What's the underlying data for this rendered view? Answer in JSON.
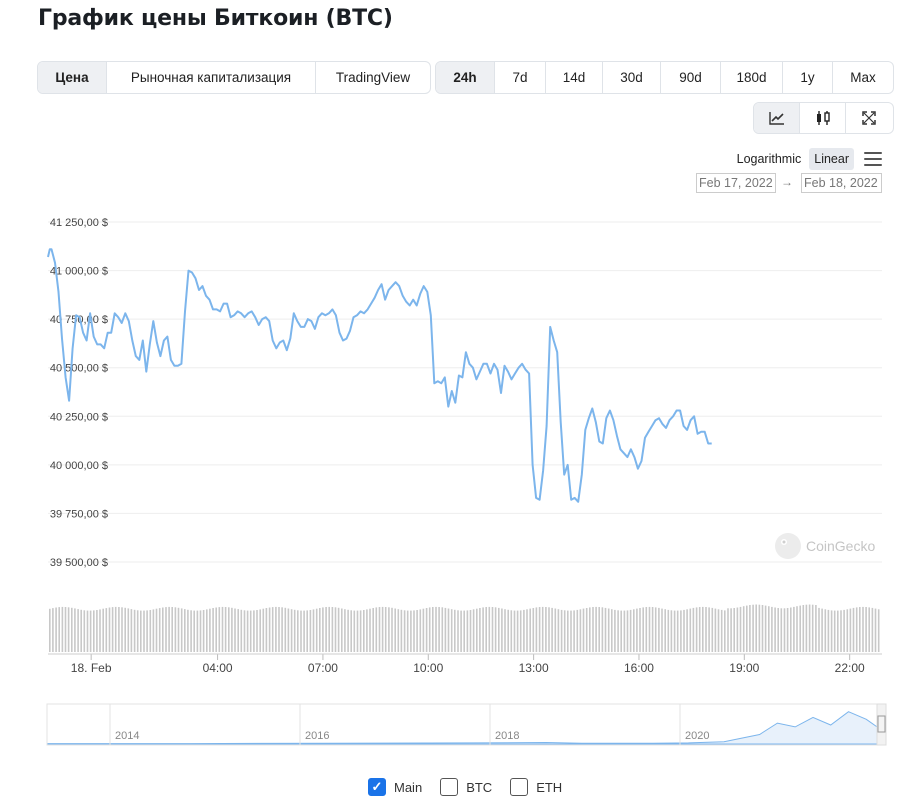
{
  "page_title": "График цены Биткоин (BTC)",
  "tabs": [
    {
      "label": "Цена",
      "active": true
    },
    {
      "label": "Рыночная капитализация",
      "active": false
    },
    {
      "label": "TradingView",
      "active": false
    }
  ],
  "ranges": [
    {
      "label": "24h",
      "active": true
    },
    {
      "label": "7d",
      "active": false
    },
    {
      "label": "14d",
      "active": false
    },
    {
      "label": "30d",
      "active": false
    },
    {
      "label": "90d",
      "active": false
    },
    {
      "label": "180d",
      "active": false
    },
    {
      "label": "1y",
      "active": false
    },
    {
      "label": "Max",
      "active": false
    }
  ],
  "view_buttons": [
    {
      "icon": "line-chart-icon",
      "active": true
    },
    {
      "icon": "candlestick-icon",
      "active": false
    },
    {
      "icon": "fullscreen-icon",
      "active": false
    }
  ],
  "scale": {
    "logarithmic": "Logarithmic",
    "linear": "Linear",
    "active": "Linear"
  },
  "date_range": {
    "from": "Feb 17, 2022",
    "arrow": "→",
    "to": "Feb 18, 2022"
  },
  "watermark": "CoinGecko",
  "legend": [
    {
      "label": "Main",
      "checked": true
    },
    {
      "label": "BTC",
      "checked": false
    },
    {
      "label": "ETH",
      "checked": false
    }
  ],
  "colors": {
    "line": "#7cb5ec",
    "grid": "#eeeeee",
    "volume": "#c8c8c8",
    "active_checkbox": "#1a73e8"
  },
  "chart_data": {
    "type": "line",
    "title": "",
    "ylabel": "",
    "ylim": [
      39500,
      41250
    ],
    "y_ticks": [
      41250,
      41000,
      40750,
      40500,
      40250,
      40000,
      39750,
      39500
    ],
    "y_tick_labels": [
      "41 250,00 $",
      "41 000,00 $",
      "40 750,00 $",
      "40 500,00 $",
      "40 250,00 $",
      "40 000,00 $",
      "39 750,00 $",
      "39 500,00 $"
    ],
    "x_tick_labels": [
      {
        "label": "18. Feb",
        "t": 1.4
      },
      {
        "label": "04:00",
        "t": 5
      },
      {
        "label": "07:00",
        "t": 8
      },
      {
        "label": "10:00",
        "t": 11
      },
      {
        "label": "13:00",
        "t": 14
      },
      {
        "label": "16:00",
        "t": 17
      },
      {
        "label": "19:00",
        "t": 20
      },
      {
        "label": "22:00",
        "t": 23
      }
    ],
    "grid": true,
    "series": [
      {
        "name": "",
        "points": [
          [
            0,
            41070
          ],
          [
            0.05,
            41110
          ],
          [
            0.1,
            41110
          ],
          [
            0.2,
            41040
          ],
          [
            0.3,
            40890
          ],
          [
            0.4,
            40650
          ],
          [
            0.5,
            40450
          ],
          [
            0.6,
            40330
          ],
          [
            0.7,
            40600
          ],
          [
            0.8,
            40770
          ],
          [
            0.9,
            40760
          ],
          [
            1.0,
            40680
          ],
          [
            1.1,
            40640
          ],
          [
            1.2,
            40780
          ],
          [
            1.3,
            40660
          ],
          [
            1.4,
            40620
          ],
          [
            1.5,
            40620
          ],
          [
            1.6,
            40600
          ],
          [
            1.7,
            40680
          ],
          [
            1.8,
            40680
          ],
          [
            1.9,
            40780
          ],
          [
            2.0,
            40760
          ],
          [
            2.1,
            40730
          ],
          [
            2.2,
            40780
          ],
          [
            2.3,
            40740
          ],
          [
            2.4,
            40640
          ],
          [
            2.5,
            40560
          ],
          [
            2.6,
            40540
          ],
          [
            2.7,
            40640
          ],
          [
            2.8,
            40480
          ],
          [
            2.9,
            40620
          ],
          [
            3.0,
            40740
          ],
          [
            3.1,
            40630
          ],
          [
            3.2,
            40560
          ],
          [
            3.3,
            40640
          ],
          [
            3.4,
            40660
          ],
          [
            3.5,
            40540
          ],
          [
            3.6,
            40510
          ],
          [
            3.7,
            40510
          ],
          [
            3.8,
            40520
          ],
          [
            3.9,
            40790
          ],
          [
            4.0,
            41000
          ],
          [
            4.1,
            40990
          ],
          [
            4.2,
            40960
          ],
          [
            4.3,
            40900
          ],
          [
            4.4,
            40920
          ],
          [
            4.5,
            40870
          ],
          [
            4.6,
            40850
          ],
          [
            4.7,
            40800
          ],
          [
            4.8,
            40800
          ],
          [
            4.9,
            40790
          ],
          [
            5.0,
            40830
          ],
          [
            5.1,
            40830
          ],
          [
            5.2,
            40760
          ],
          [
            5.3,
            40770
          ],
          [
            5.4,
            40790
          ],
          [
            5.5,
            40780
          ],
          [
            5.6,
            40760
          ],
          [
            5.7,
            40780
          ],
          [
            5.8,
            40790
          ],
          [
            5.9,
            40760
          ],
          [
            6.0,
            40720
          ],
          [
            6.1,
            40750
          ],
          [
            6.2,
            40760
          ],
          [
            6.3,
            40740
          ],
          [
            6.4,
            40640
          ],
          [
            6.5,
            40600
          ],
          [
            6.6,
            40630
          ],
          [
            6.7,
            40640
          ],
          [
            6.8,
            40590
          ],
          [
            6.9,
            40650
          ],
          [
            7.0,
            40780
          ],
          [
            7.1,
            40740
          ],
          [
            7.2,
            40710
          ],
          [
            7.3,
            40710
          ],
          [
            7.4,
            40750
          ],
          [
            7.5,
            40740
          ],
          [
            7.6,
            40700
          ],
          [
            7.7,
            40760
          ],
          [
            7.8,
            40780
          ],
          [
            7.9,
            40770
          ],
          [
            8.0,
            40780
          ],
          [
            8.1,
            40800
          ],
          [
            8.2,
            40770
          ],
          [
            8.3,
            40680
          ],
          [
            8.4,
            40640
          ],
          [
            8.5,
            40650
          ],
          [
            8.6,
            40690
          ],
          [
            8.7,
            40760
          ],
          [
            8.8,
            40770
          ],
          [
            8.9,
            40790
          ],
          [
            9.0,
            40780
          ],
          [
            9.1,
            40800
          ],
          [
            9.2,
            40830
          ],
          [
            9.3,
            40860
          ],
          [
            9.4,
            40900
          ],
          [
            9.5,
            40930
          ],
          [
            9.6,
            40850
          ],
          [
            9.7,
            40900
          ],
          [
            9.8,
            40920
          ],
          [
            9.9,
            40940
          ],
          [
            10.0,
            40920
          ],
          [
            10.1,
            40870
          ],
          [
            10.2,
            40840
          ],
          [
            10.3,
            40820
          ],
          [
            10.4,
            40850
          ],
          [
            10.5,
            40820
          ],
          [
            10.6,
            40880
          ],
          [
            10.7,
            40920
          ],
          [
            10.8,
            40890
          ],
          [
            10.9,
            40770
          ],
          [
            11.0,
            40420
          ],
          [
            11.1,
            40430
          ],
          [
            11.2,
            40420
          ],
          [
            11.3,
            40450
          ],
          [
            11.4,
            40300
          ],
          [
            11.5,
            40380
          ],
          [
            11.6,
            40320
          ],
          [
            11.7,
            40460
          ],
          [
            11.8,
            40450
          ],
          [
            11.9,
            40580
          ],
          [
            12.0,
            40520
          ],
          [
            12.1,
            40500
          ],
          [
            12.2,
            40440
          ],
          [
            12.3,
            40480
          ],
          [
            12.4,
            40520
          ],
          [
            12.5,
            40520
          ],
          [
            12.6,
            40470
          ],
          [
            12.7,
            40520
          ],
          [
            12.8,
            40490
          ],
          [
            12.9,
            40370
          ],
          [
            13.0,
            40510
          ],
          [
            13.1,
            40480
          ],
          [
            13.2,
            40440
          ],
          [
            13.3,
            40470
          ],
          [
            13.4,
            40500
          ],
          [
            13.5,
            40520
          ],
          [
            13.6,
            40490
          ],
          [
            13.7,
            40470
          ],
          [
            13.8,
            40000
          ],
          [
            13.9,
            39830
          ],
          [
            14.0,
            39820
          ],
          [
            14.1,
            39970
          ],
          [
            14.2,
            40200
          ],
          [
            14.3,
            40710
          ],
          [
            14.4,
            40640
          ],
          [
            14.5,
            40580
          ],
          [
            14.6,
            40220
          ],
          [
            14.7,
            39950
          ],
          [
            14.8,
            40000
          ],
          [
            14.9,
            39820
          ],
          [
            15.0,
            39830
          ],
          [
            15.1,
            39810
          ],
          [
            15.2,
            39950
          ],
          [
            15.3,
            40180
          ],
          [
            15.4,
            40240
          ],
          [
            15.5,
            40290
          ],
          [
            15.6,
            40220
          ],
          [
            15.7,
            40120
          ],
          [
            15.8,
            40110
          ],
          [
            15.9,
            40240
          ],
          [
            16.0,
            40280
          ],
          [
            16.1,
            40230
          ],
          [
            16.2,
            40150
          ],
          [
            16.3,
            40080
          ],
          [
            16.4,
            40060
          ],
          [
            16.5,
            40040
          ],
          [
            16.6,
            40080
          ],
          [
            16.7,
            40040
          ],
          [
            16.8,
            39980
          ],
          [
            16.9,
            40020
          ],
          [
            17.0,
            40140
          ],
          [
            17.1,
            40170
          ],
          [
            17.2,
            40200
          ],
          [
            17.3,
            40230
          ],
          [
            17.4,
            40240
          ],
          [
            17.5,
            40210
          ],
          [
            17.6,
            40190
          ],
          [
            17.7,
            40230
          ],
          [
            17.8,
            40250
          ],
          [
            17.9,
            40280
          ],
          [
            18.0,
            40280
          ],
          [
            18.1,
            40200
          ],
          [
            18.2,
            40180
          ],
          [
            18.3,
            40230
          ],
          [
            18.4,
            40250
          ],
          [
            18.5,
            40160
          ],
          [
            18.6,
            40170
          ],
          [
            18.7,
            40170
          ],
          [
            18.8,
            40110
          ],
          [
            18.9,
            40110
          ]
        ]
      }
    ],
    "volume": {
      "label": "volume bars",
      "level": 0.7
    },
    "navigator": {
      "x_tick_labels": [
        "2014",
        "2016",
        "2018",
        "2020"
      ],
      "series": [
        [
          0,
          0.01
        ],
        [
          4,
          0.01
        ],
        [
          8,
          0.02
        ],
        [
          12,
          0.03
        ],
        [
          14,
          0.04
        ],
        [
          15,
          0.02
        ],
        [
          17,
          0.02
        ],
        [
          18,
          0.03
        ],
        [
          19,
          0.06
        ],
        [
          20,
          0.25
        ],
        [
          20.5,
          0.55
        ],
        [
          21,
          0.45
        ],
        [
          21.5,
          0.7
        ],
        [
          22,
          0.5
        ],
        [
          22.5,
          0.85
        ],
        [
          23,
          0.65
        ],
        [
          23.3,
          0.45
        ]
      ]
    }
  }
}
